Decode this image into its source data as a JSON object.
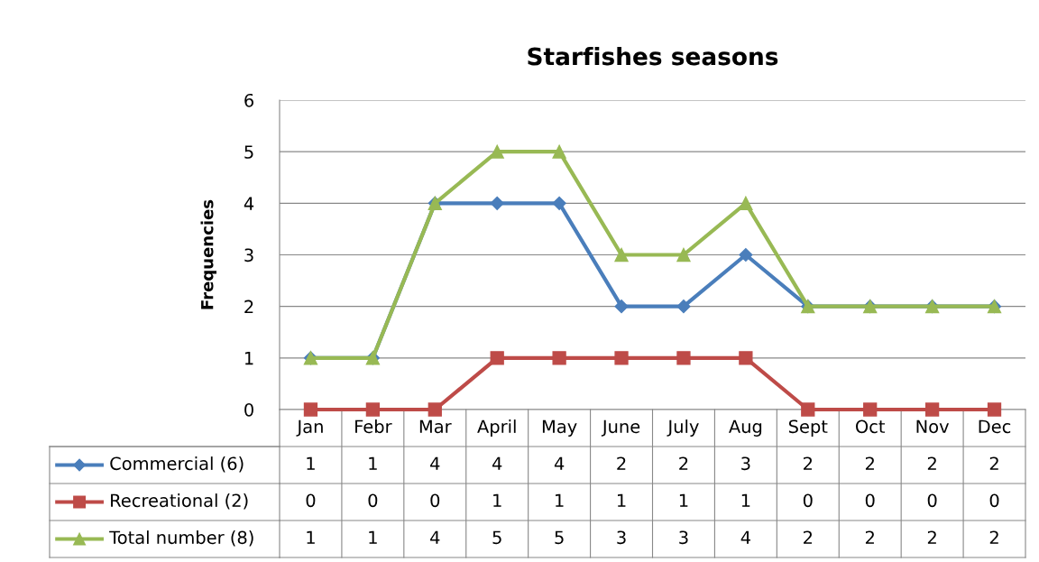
{
  "chart_data": {
    "type": "line",
    "title": "Starfishes seasons",
    "ylabel": "Frequencies",
    "categories": [
      "Jan",
      "Febr",
      "Mar",
      "April",
      "May",
      "June",
      "July",
      "Aug",
      "Sept",
      "Oct",
      "Nov",
      "Dec"
    ],
    "series": [
      {
        "name": "Commercial (6)",
        "color": "#4a7ebb",
        "marker": "diamond",
        "values": [
          1,
          1,
          4,
          4,
          4,
          2,
          2,
          3,
          2,
          2,
          2,
          2
        ]
      },
      {
        "name": "Recreational (2)",
        "color": "#be4b48",
        "marker": "square",
        "values": [
          0,
          0,
          0,
          1,
          1,
          1,
          1,
          1,
          0,
          0,
          0,
          0
        ]
      },
      {
        "name": "Total number (8)",
        "color": "#98b954",
        "marker": "triangle",
        "values": [
          1,
          1,
          4,
          5,
          5,
          3,
          3,
          4,
          2,
          2,
          2,
          2
        ]
      }
    ],
    "ylim": [
      0,
      6
    ],
    "yticks": [
      0,
      1,
      2,
      3,
      4,
      5,
      6
    ],
    "grid": "y",
    "legend": "bottom",
    "data_labels": true,
    "line_style": "solid"
  }
}
